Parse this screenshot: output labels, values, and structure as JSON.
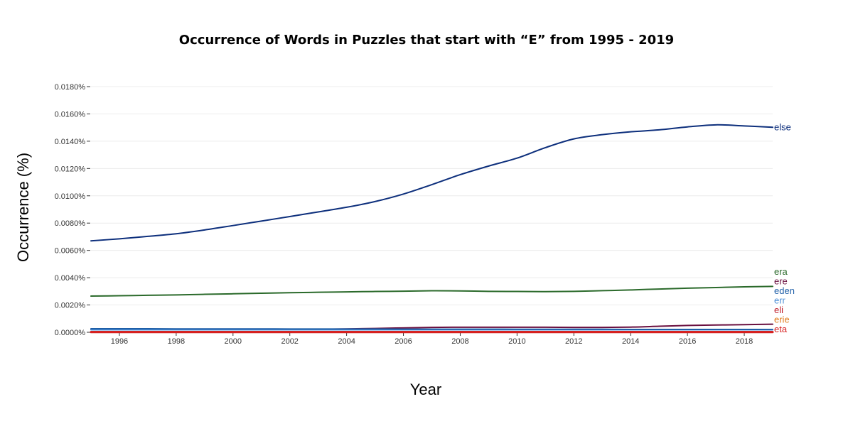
{
  "chart_data": {
    "type": "line",
    "title": "Occurrence of Words in Puzzles that start with “E” from 1995 - 2019",
    "xlabel": "Year",
    "ylabel": "Occurrence (%)",
    "xlim": [
      1995,
      2019
    ],
    "ylim": [
      0,
      0.018
    ],
    "x_ticks": [
      "1996",
      "1998",
      "2000",
      "2002",
      "2004",
      "2006",
      "2008",
      "2010",
      "2012",
      "2014",
      "2016",
      "2018"
    ],
    "y_ticks": [
      "0.0000%",
      "0.0020%",
      "0.0040%",
      "0.0060%",
      "0.0080%",
      "0.0100%",
      "0.0120%",
      "0.0140%",
      "0.0160%",
      "0.0180%"
    ],
    "grid": true,
    "legend": "inline labels at right end of lines",
    "x": [
      1995,
      1996,
      1997,
      1998,
      1999,
      2000,
      2001,
      2002,
      2003,
      2004,
      2005,
      2006,
      2007,
      2008,
      2009,
      2010,
      2011,
      2012,
      2013,
      2014,
      2015,
      2016,
      2017,
      2018,
      2019
    ],
    "series": [
      {
        "name": "else",
        "color": "#0d2f7c",
        "values": [
          0.0067,
          0.00685,
          0.00703,
          0.00722,
          0.0075,
          0.00782,
          0.00815,
          0.00848,
          0.00882,
          0.00916,
          0.00958,
          0.01013,
          0.01082,
          0.01155,
          0.01218,
          0.01276,
          0.01353,
          0.01417,
          0.01448,
          0.01469,
          0.01483,
          0.01505,
          0.0152,
          0.01512,
          0.01502
        ]
      },
      {
        "name": "era",
        "color": "#2b6a2b",
        "values": [
          0.00265,
          0.00268,
          0.00271,
          0.00274,
          0.00278,
          0.00282,
          0.00286,
          0.0029,
          0.00293,
          0.00296,
          0.00299,
          0.00301,
          0.00304,
          0.00303,
          0.003,
          0.00299,
          0.00298,
          0.003,
          0.00305,
          0.0031,
          0.00317,
          0.00323,
          0.00328,
          0.00333,
          0.00336
        ]
      },
      {
        "name": "ere",
        "color": "#6a0f3f",
        "values": [
          0.0002,
          0.0002,
          0.0002,
          0.0002,
          0.0002,
          0.0002,
          0.0002,
          0.0002,
          0.00022,
          0.00025,
          0.00028,
          0.00032,
          0.00036,
          0.00037,
          0.00037,
          0.00037,
          0.00037,
          0.00036,
          0.00036,
          0.00038,
          0.00044,
          0.0005,
          0.00053,
          0.00056,
          0.00059
        ]
      },
      {
        "name": "err",
        "color": "#4d8fd6",
        "values": [
          0.00018,
          0.00018,
          0.00018,
          0.00018,
          0.00018,
          0.00018,
          0.00018,
          0.00018,
          0.00018,
          0.00018,
          0.00018,
          0.00018,
          0.00018,
          0.00018,
          0.00018,
          0.00018,
          0.00018,
          0.00018,
          0.00018,
          0.00018,
          0.00018,
          0.00018,
          0.00018,
          0.00018,
          0.00018
        ]
      },
      {
        "name": "eden",
        "color": "#1f5fa8",
        "values": [
          0.00026,
          0.00026,
          0.00026,
          0.00025,
          0.00025,
          0.00025,
          0.00025,
          0.00024,
          0.00024,
          0.00024,
          0.00024,
          0.00023,
          0.00023,
          0.00023,
          0.00023,
          0.00022,
          0.00022,
          0.00022,
          0.00022,
          0.00021,
          0.00021,
          0.00021,
          0.00021,
          0.00021,
          0.0002
        ]
      },
      {
        "name": "eli",
        "color": "#c0222e",
        "values": [
          5e-05,
          5e-05,
          5e-05,
          5e-05,
          5e-05,
          5e-05,
          5e-05,
          5e-05,
          5e-05,
          5e-05,
          5e-05,
          5e-05,
          5e-05,
          5e-05,
          5e-05,
          5e-05,
          5e-05,
          5e-05,
          5e-05,
          5e-05,
          5e-05,
          5e-05,
          5e-05,
          5e-05,
          5e-05
        ]
      },
      {
        "name": "erie",
        "color": "#e07b1a",
        "values": [
          3e-05,
          3e-05,
          3e-05,
          3e-05,
          3e-05,
          3e-05,
          3e-05,
          3e-05,
          3e-05,
          3e-05,
          3e-05,
          3e-05,
          3e-05,
          3e-05,
          3e-05,
          3e-05,
          3e-05,
          3e-05,
          3e-05,
          3e-05,
          3e-05,
          3e-05,
          3e-05,
          3e-05,
          3e-05
        ]
      },
      {
        "name": "eta",
        "color": "#d62020",
        "values": [
          1e-05,
          1e-05,
          1e-05,
          1e-05,
          1e-05,
          1e-05,
          1e-05,
          1e-05,
          1e-05,
          1e-05,
          1e-05,
          1e-05,
          1e-05,
          1e-05,
          1e-05,
          1e-05,
          1e-05,
          1e-05,
          1e-05,
          1e-05,
          1e-05,
          1e-05,
          1e-05,
          1e-05,
          1e-05
        ]
      }
    ]
  }
}
